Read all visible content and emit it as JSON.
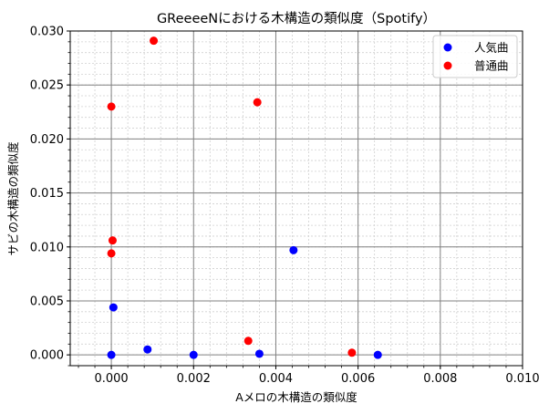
{
  "chart_data": {
    "type": "scatter",
    "title": "GReeeeNにおける木構造の類似度（Spotify）",
    "xlabel": "Aメロの木構造の類似度",
    "ylabel": "サビの木構造の類似度",
    "xlim": [
      -0.001,
      0.01
    ],
    "ylim": [
      -0.001,
      0.03
    ],
    "x_ticks": [
      "0.000",
      "0.002",
      "0.004",
      "0.006",
      "0.008",
      "0.010"
    ],
    "y_ticks": [
      "0.000",
      "0.005",
      "0.010",
      "0.015",
      "0.020",
      "0.025",
      "0.030"
    ],
    "grid": true,
    "legend_position": "top-right",
    "series": [
      {
        "name": "人気曲",
        "color": "#0000ff",
        "points": [
          {
            "x": 0.0,
            "y": 0.0
          },
          {
            "x": 5e-05,
            "y": 0.0044
          },
          {
            "x": 0.00088,
            "y": 0.0005
          },
          {
            "x": 0.002,
            "y": 0.0
          },
          {
            "x": 0.0036,
            "y": 0.0001
          },
          {
            "x": 0.00443,
            "y": 0.0097
          },
          {
            "x": 0.00648,
            "y": 0.0
          }
        ]
      },
      {
        "name": "普通曲",
        "color": "#ff0000",
        "points": [
          {
            "x": 0.0,
            "y": 0.023
          },
          {
            "x": 3e-05,
            "y": 0.0106
          },
          {
            "x": 0.0,
            "y": 0.0094
          },
          {
            "x": 0.00103,
            "y": 0.0291
          },
          {
            "x": 0.00355,
            "y": 0.0234
          },
          {
            "x": 0.00333,
            "y": 0.0013
          },
          {
            "x": 0.00585,
            "y": 0.0002
          }
        ]
      }
    ]
  }
}
